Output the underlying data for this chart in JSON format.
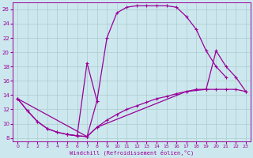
{
  "bg_color": "#cce8ee",
  "line_color": "#990099",
  "grid_color": "#aacccc",
  "xlabel": "Windchill (Refroidissement éolien,°C)",
  "xlim": [
    -0.5,
    23.5
  ],
  "ylim": [
    7.5,
    27.0
  ],
  "xticks": [
    0,
    1,
    2,
    3,
    4,
    5,
    6,
    7,
    8,
    9,
    10,
    11,
    12,
    13,
    14,
    15,
    16,
    17,
    18,
    19,
    20,
    21,
    22,
    23
  ],
  "yticks": [
    8,
    10,
    12,
    14,
    16,
    18,
    20,
    22,
    24,
    26
  ],
  "curve1": {
    "x": [
      0,
      1,
      2,
      3,
      4,
      5,
      6,
      7,
      8,
      9,
      10,
      11,
      12,
      13,
      14,
      15,
      16,
      17,
      18,
      19,
      20,
      21
    ],
    "y": [
      13.5,
      11.8,
      10.3,
      9.3,
      8.8,
      8.5,
      8.3,
      8.2,
      13.2,
      22.0,
      25.5,
      26.3,
      26.5,
      26.5,
      26.5,
      26.5,
      26.3,
      25.0,
      23.2,
      20.2,
      18.0,
      16.5
    ]
  },
  "curve2": {
    "x": [
      0,
      1,
      2,
      3,
      4,
      5,
      6,
      7,
      8,
      9,
      10,
      11,
      12,
      13,
      14,
      15,
      16,
      17,
      18,
      19,
      20,
      21,
      22,
      23
    ],
    "y": [
      13.5,
      11.8,
      10.3,
      9.3,
      8.8,
      8.5,
      8.3,
      8.2,
      9.5,
      10.5,
      11.3,
      12.0,
      12.5,
      13.0,
      13.5,
      13.8,
      14.2,
      14.5,
      14.8,
      14.8,
      14.8,
      14.8,
      14.8,
      14.5
    ]
  },
  "curve3": {
    "x": [
      0,
      7,
      8,
      17,
      19,
      20,
      21,
      22,
      23
    ],
    "y": [
      13.5,
      8.2,
      9.5,
      14.5,
      14.8,
      20.2,
      18.0,
      16.5,
      14.5
    ]
  },
  "curve4": {
    "x": [
      5,
      6,
      7,
      8
    ],
    "y": [
      8.5,
      8.3,
      18.5,
      13.2
    ]
  }
}
